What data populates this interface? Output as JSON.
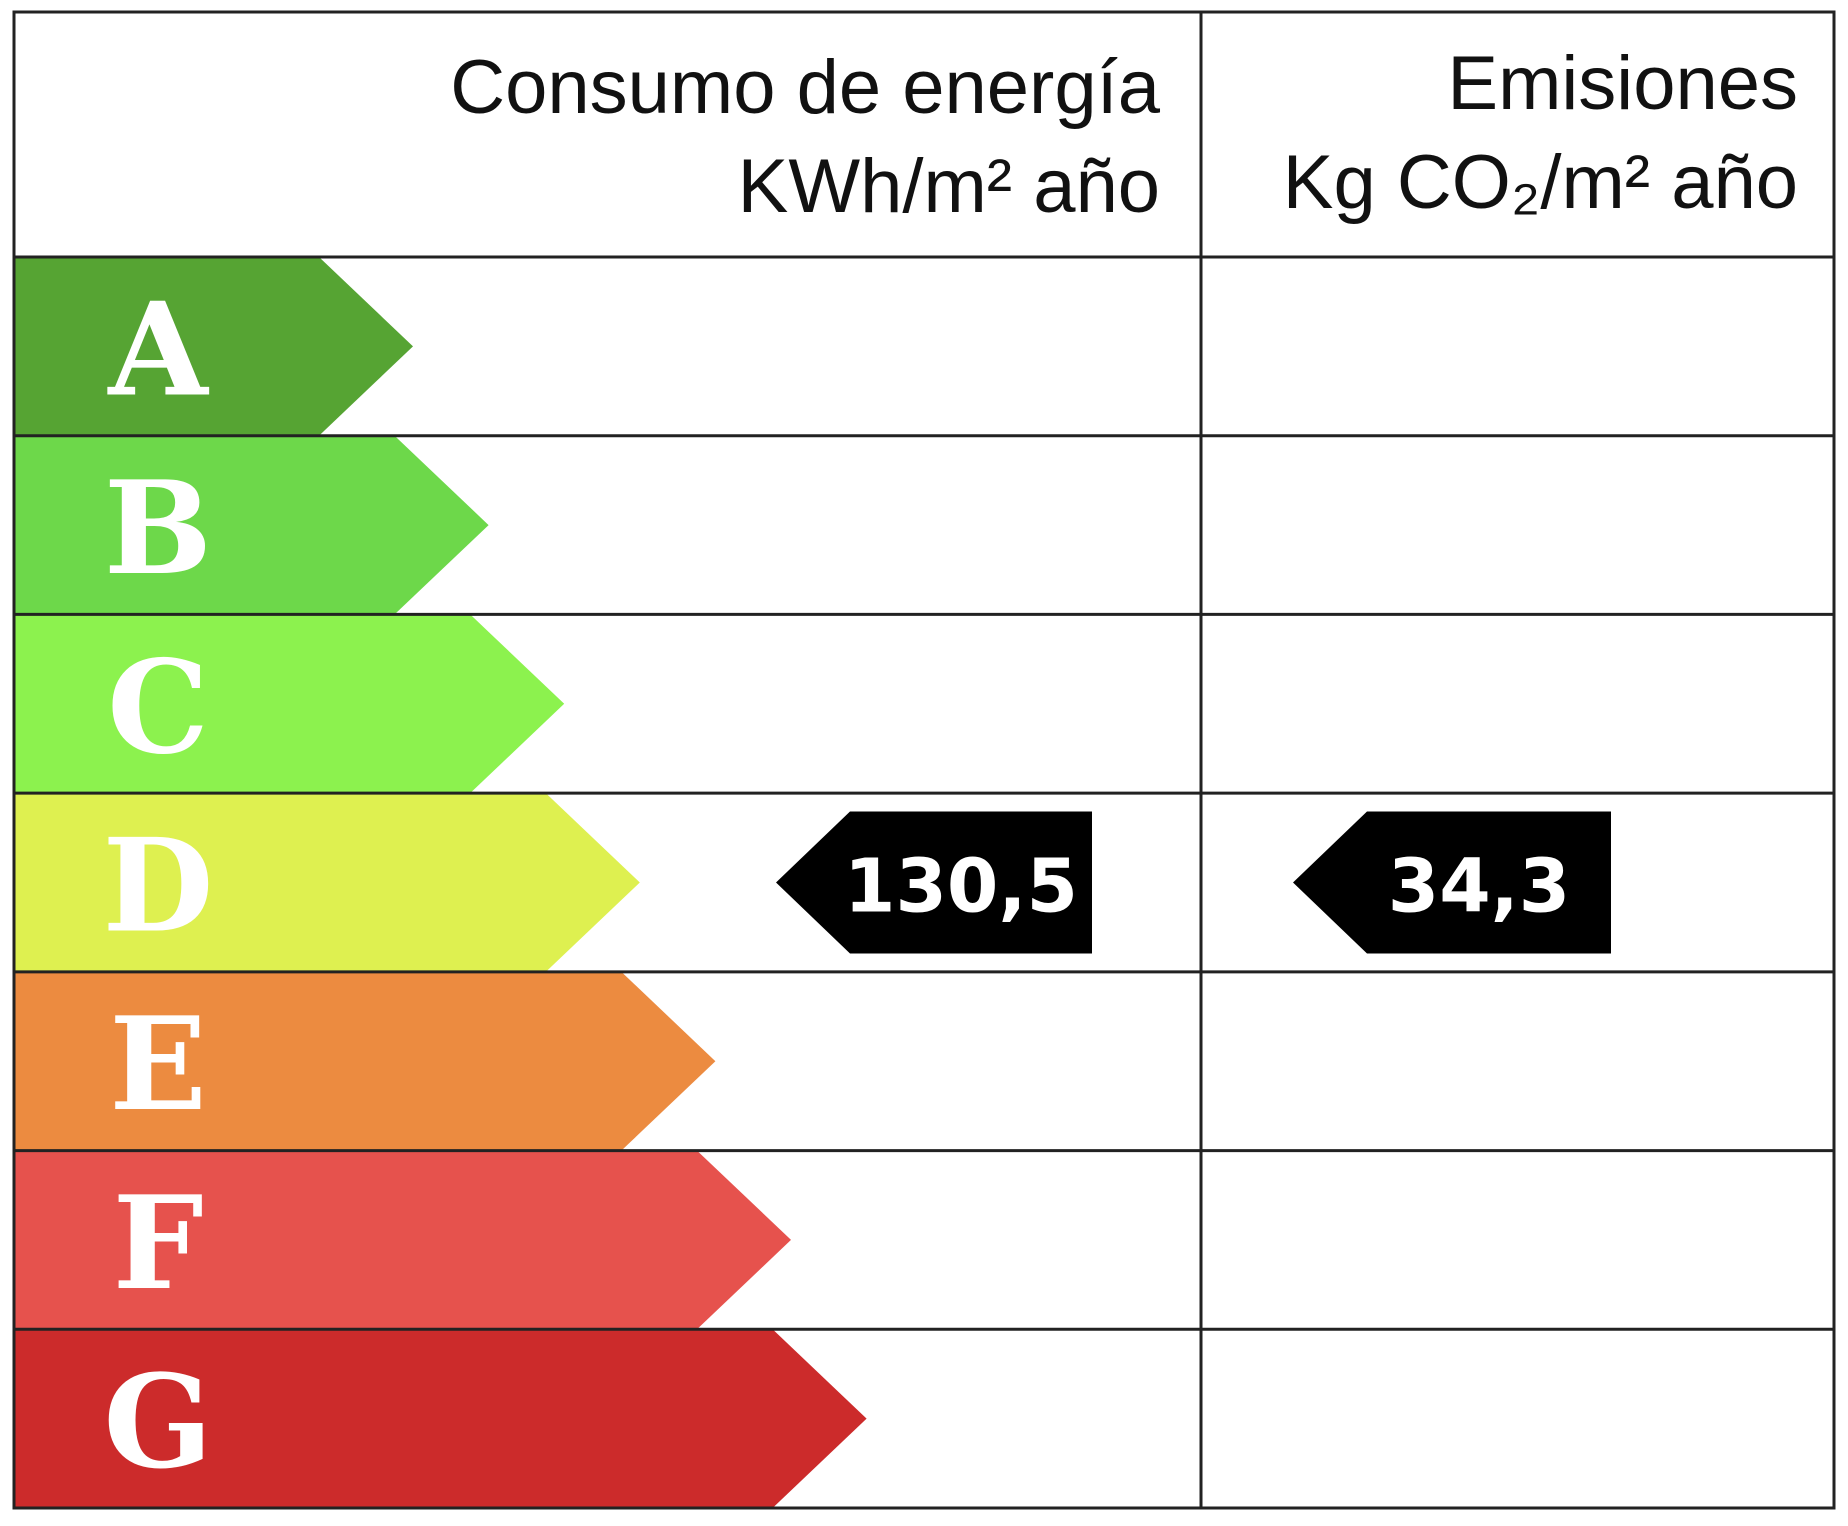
{
  "header": {
    "energy": {
      "title": "Consumo de energía",
      "unit": "KWh/m² año"
    },
    "emissions": {
      "title": "Emisiones",
      "unit": "Kg CO₂/m² año"
    }
  },
  "classes": [
    {
      "label": "A",
      "color": "#56a433"
    },
    {
      "label": "B",
      "color": "#6dd84a"
    },
    {
      "label": "C",
      "color": "#8cf24e"
    },
    {
      "label": "D",
      "color": "#def050"
    },
    {
      "label": "E",
      "color": "#ec8b40"
    },
    {
      "label": "F",
      "color": "#e6524d"
    },
    {
      "label": "G",
      "color": "#cc2b2b"
    }
  ],
  "energy_rating": {
    "class": "D",
    "value": "130,5"
  },
  "emissions_rating": {
    "class": "D",
    "value": "34,3"
  }
}
